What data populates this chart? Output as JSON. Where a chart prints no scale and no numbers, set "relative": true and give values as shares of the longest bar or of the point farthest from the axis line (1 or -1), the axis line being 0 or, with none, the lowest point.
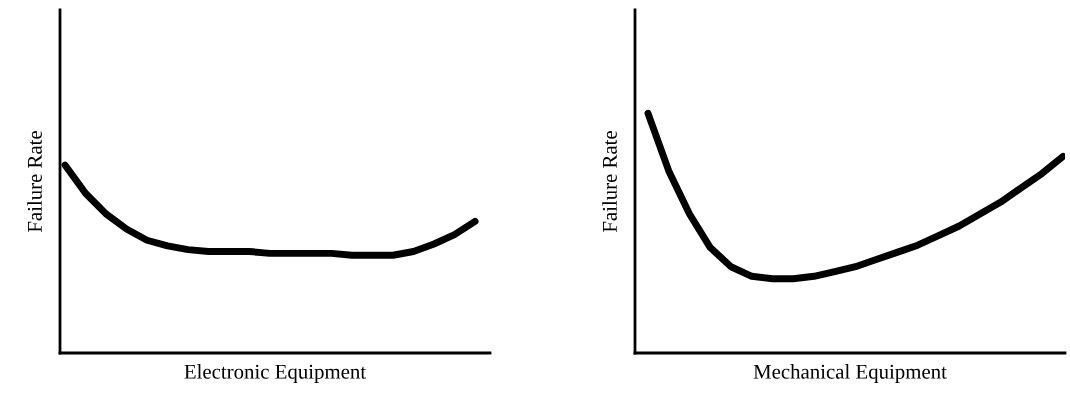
{
  "chart_data": [
    {
      "type": "line",
      "relative": true,
      "xlabel": "Electronic Equipment",
      "ylabel": "Failure Rate",
      "categories": [
        null,
        null,
        null,
        null,
        null,
        null,
        null,
        null,
        null,
        null,
        null,
        null,
        null,
        null,
        null,
        null,
        null,
        null,
        null,
        null,
        null
      ],
      "series": [
        {
          "color": "#000000",
          "values": [
            1.0,
            0.85,
            0.74,
            0.66,
            0.6,
            0.57,
            0.55,
            0.54,
            0.54,
            0.54,
            0.53,
            0.53,
            0.53,
            0.53,
            0.52,
            0.52,
            0.52,
            0.54,
            0.58,
            0.63,
            0.7
          ]
        }
      ],
      "legend": false,
      "marker": "none",
      "line_style": "solid"
    },
    {
      "type": "line",
      "relative": true,
      "xlabel": "Mechanical Equipment",
      "ylabel": "Failure Rate",
      "categories": [
        null,
        null,
        null,
        null,
        null,
        null,
        null,
        null,
        null,
        null,
        null,
        null,
        null,
        null,
        null,
        null,
        null,
        null,
        null,
        null,
        null
      ],
      "series": [
        {
          "color": "#000000",
          "values": [
            1.0,
            0.76,
            0.58,
            0.44,
            0.36,
            0.32,
            0.31,
            0.31,
            0.32,
            0.34,
            0.36,
            0.39,
            0.42,
            0.45,
            0.49,
            0.53,
            0.58,
            0.63,
            0.69,
            0.75,
            0.82
          ]
        }
      ],
      "legend": false,
      "marker": "none",
      "line_style": "solid"
    }
  ]
}
